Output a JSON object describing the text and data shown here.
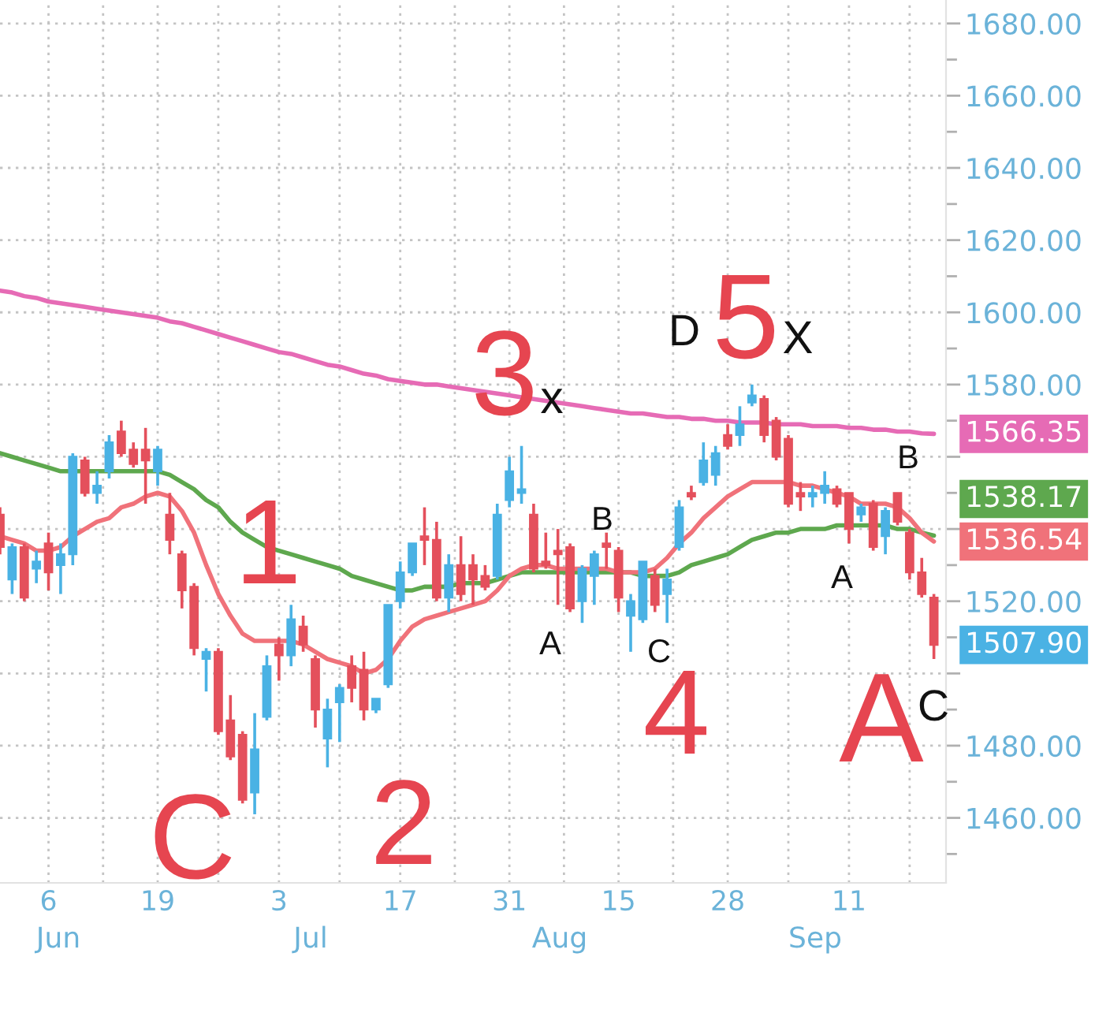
{
  "chart_data": {
    "type": "candlestick",
    "categories": [
      null,
      null,
      null,
      null,
      "6",
      null,
      null,
      null,
      null,
      null,
      null,
      null,
      null,
      "19",
      null,
      null,
      null,
      null,
      null,
      null,
      null,
      null,
      null,
      "3",
      null,
      null,
      null,
      null,
      null,
      null,
      null,
      null,
      null,
      "17",
      null,
      null,
      null,
      null,
      null,
      null,
      null,
      null,
      "31",
      null,
      null,
      null,
      null,
      null,
      null,
      null,
      null,
      "15",
      null,
      null,
      null,
      null,
      null,
      null,
      null,
      null,
      "28",
      null,
      null,
      null,
      null,
      null,
      null,
      null,
      null,
      null,
      "11",
      null,
      null,
      null,
      null,
      null,
      null,
      null
    ],
    "ohlc": [
      [
        1544,
        1546,
        1533,
        1535
      ],
      [
        1526,
        1536,
        1522,
        1535
      ],
      [
        1535,
        1536,
        1520,
        1521
      ],
      [
        1529,
        1534,
        1525,
        1531
      ],
      [
        1536,
        1539,
        1523,
        1528
      ],
      [
        1530,
        1536,
        1522,
        1533
      ],
      [
        1533,
        1561,
        1530,
        1560
      ],
      [
        1559,
        1560,
        1549,
        1550
      ],
      [
        1550,
        1556,
        1547,
        1552
      ],
      [
        1556,
        1566,
        1554,
        1564
      ],
      [
        1567,
        1570,
        1560,
        1561
      ],
      [
        1562,
        1564,
        1557,
        1558
      ],
      [
        1562,
        1568,
        1547,
        1559
      ],
      [
        1556,
        1563,
        1552,
        1562
      ],
      [
        1544,
        1550,
        1533,
        1537
      ],
      [
        1533,
        1534,
        1518,
        1523
      ],
      [
        1524,
        1525,
        1505,
        1507
      ],
      [
        1504,
        1507,
        1495,
        1506
      ],
      [
        1506,
        1507,
        1483,
        1484
      ],
      [
        1487,
        1494,
        1476,
        1477
      ],
      [
        1483,
        1484,
        1464,
        1465
      ],
      [
        1467,
        1489,
        1461,
        1479
      ],
      [
        1488,
        1505,
        1487,
        1502
      ],
      [
        1508,
        1510,
        1498,
        1505
      ],
      [
        1505,
        1519,
        1502,
        1515
      ],
      [
        1513,
        1516,
        1506,
        1508
      ],
      [
        1504,
        1505,
        1485,
        1490
      ],
      [
        1482,
        1493,
        1474,
        1490
      ],
      [
        1492,
        1497,
        1481,
        1496
      ],
      [
        1502,
        1505,
        1492,
        1496
      ],
      [
        1501,
        1506,
        1487,
        1490
      ],
      [
        1490,
        1493,
        1489,
        1493
      ],
      [
        1497,
        1519,
        1496,
        1519
      ],
      [
        1520,
        1531,
        1518,
        1528
      ],
      [
        1528,
        1536,
        1527,
        1536
      ],
      [
        1538,
        1546,
        1530,
        1537
      ],
      [
        1537,
        1542,
        1520,
        1521
      ],
      [
        1521,
        1533,
        1517,
        1530
      ],
      [
        1530,
        1538,
        1520,
        1522
      ],
      [
        1530,
        1533,
        1519,
        1526
      ],
      [
        1527,
        1530,
        1523,
        1524
      ],
      [
        1527,
        1547,
        1526,
        1544
      ],
      [
        1548,
        1560,
        1546,
        1556
      ],
      [
        1550,
        1563,
        1547,
        1551
      ],
      [
        1544,
        1547,
        1528,
        1529
      ],
      [
        1531,
        1539,
        1529,
        1530
      ],
      [
        1534,
        1540,
        1519,
        1533
      ],
      [
        1535,
        1536,
        1517,
        1518
      ],
      [
        1520,
        1530,
        1514,
        1529
      ],
      [
        1527,
        1534,
        1519,
        1533
      ],
      [
        1536,
        1539,
        1529,
        1535
      ],
      [
        1534,
        1535,
        1517,
        1521
      ],
      [
        1516,
        1522,
        1506,
        1520
      ],
      [
        1515,
        1531,
        1514,
        1531
      ],
      [
        1527,
        1529,
        1517,
        1519
      ],
      [
        1522,
        1529,
        1514,
        1526
      ],
      [
        1535,
        1548,
        1534,
        1546
      ],
      [
        1550,
        1552,
        1548,
        1549
      ],
      [
        1553,
        1564,
        1552,
        1559
      ],
      [
        1555,
        1563,
        1552,
        1561
      ],
      [
        1566,
        1569,
        1562,
        1563
      ],
      [
        1566,
        1574,
        1563,
        1569
      ],
      [
        1575,
        1580,
        1574,
        1577
      ],
      [
        1576,
        1577,
        1564,
        1566
      ],
      [
        1570,
        1571,
        1559,
        1560
      ],
      [
        1565,
        1566,
        1546,
        1547
      ],
      [
        1550,
        1553,
        1545,
        1549
      ],
      [
        1549,
        1552,
        1546,
        1550
      ],
      [
        1550,
        1556,
        1547,
        1552
      ],
      [
        1551,
        1552,
        1546,
        1547
      ],
      [
        1550,
        1550,
        1536,
        1540
      ],
      [
        1544,
        1547,
        1542,
        1546
      ],
      [
        1547,
        1548,
        1534,
        1535
      ],
      [
        1538,
        1546,
        1533,
        1545
      ],
      [
        1550,
        1550,
        1541,
        1542
      ],
      [
        1539,
        1540,
        1526,
        1528
      ],
      [
        1528,
        1532,
        1521,
        1522
      ],
      [
        1521,
        1522,
        1504,
        1507.9
      ]
    ],
    "colors": [
      "#e4505c",
      "#4ab2e4",
      "#e4505c",
      "#4ab2e4",
      "#e4505c",
      "#4ab2e4",
      "#4ab2e4",
      "#e4505c",
      "#4ab2e4",
      "#4ab2e4",
      "#e4505c",
      "#e4505c",
      "#e4505c",
      "#4ab2e4",
      "#e4505c",
      "#e4505c",
      "#e4505c",
      "#4ab2e4",
      "#e4505c",
      "#e4505c",
      "#e4505c",
      "#4ab2e4",
      "#4ab2e4",
      "#e4505c",
      "#4ab2e4",
      "#e4505c",
      "#e4505c",
      "#4ab2e4",
      "#4ab2e4",
      "#e4505c",
      "#e4505c",
      "#4ab2e4",
      "#4ab2e4",
      "#4ab2e4",
      "#4ab2e4",
      "#e4505c",
      "#e4505c",
      "#4ab2e4",
      "#e4505c",
      "#e4505c",
      "#e4505c",
      "#4ab2e4",
      "#4ab2e4",
      "#4ab2e4",
      "#e4505c",
      "#e4505c",
      "#e4505c",
      "#e4505c",
      "#4ab2e4",
      "#4ab2e4",
      "#e4505c",
      "#e4505c",
      "#4ab2e4",
      "#4ab2e4",
      "#e4505c",
      "#4ab2e4",
      "#4ab2e4",
      "#e4505c",
      "#4ab2e4",
      "#4ab2e4",
      "#e4505c",
      "#4ab2e4",
      "#4ab2e4",
      "#e4505c",
      "#e4505c",
      "#e4505c",
      "#e4505c",
      "#4ab2e4",
      "#4ab2e4",
      "#e4505c",
      "#e4505c",
      "#4ab2e4",
      "#e4505c",
      "#4ab2e4",
      "#e4505c",
      "#e4505c",
      "#e4505c",
      "#e4505c"
    ],
    "value_labels": [
      null,
      null,
      null,
      null,
      null,
      null,
      null,
      null,
      null,
      null,
      null,
      null,
      null,
      null,
      null,
      null,
      null,
      null,
      null,
      null,
      null,
      null,
      null,
      null,
      null,
      null,
      null,
      null,
      null,
      null,
      null,
      null,
      null,
      null,
      null,
      null,
      null,
      null,
      null,
      null,
      null,
      null,
      null,
      null,
      null,
      null,
      null,
      null,
      null,
      null,
      null,
      null,
      null,
      null,
      null,
      null,
      null,
      null,
      null,
      null,
      null,
      null,
      null,
      null,
      null,
      null,
      null,
      null,
      null,
      null,
      null,
      null,
      null,
      null,
      null,
      null,
      null,
      "1507.90"
    ],
    "series": [
      {
        "type": "line",
        "color": "#e66bb5",
        "values": [
          1606,
          1605.5,
          1604.5,
          1604,
          1603,
          1602.5,
          1602,
          1601.5,
          1601,
          1600.5,
          1600,
          1599.5,
          1599,
          1598.5,
          1597.5,
          1597,
          1596,
          1595,
          1594,
          1593,
          1592,
          1591,
          1590,
          1589,
          1588.5,
          1587.5,
          1586.5,
          1585.5,
          1585,
          1584,
          1583,
          1582.5,
          1581.5,
          1581,
          1580.5,
          1580,
          1580,
          1579.5,
          1579,
          1578.5,
          1578,
          1577.5,
          1577,
          1576.5,
          1576,
          1575.5,
          1575,
          1574.5,
          1574,
          1573.5,
          1573,
          1572.5,
          1572,
          1572,
          1571.5,
          1571,
          1571,
          1570.5,
          1570.5,
          1570,
          1570,
          1569.5,
          1569.5,
          1569.5,
          1569,
          1569,
          1569,
          1568.5,
          1568.5,
          1568.5,
          1568,
          1568,
          1567.5,
          1567.5,
          1567,
          1567,
          1566.5,
          1566.35
        ],
        "value_labels": [
          null,
          null,
          null,
          null,
          null,
          null,
          null,
          null,
          null,
          null,
          null,
          null,
          null,
          null,
          null,
          null,
          null,
          null,
          null,
          null,
          null,
          null,
          null,
          null,
          null,
          null,
          null,
          null,
          null,
          null,
          null,
          null,
          null,
          null,
          null,
          null,
          null,
          null,
          null,
          null,
          null,
          null,
          null,
          null,
          null,
          null,
          null,
          null,
          null,
          null,
          null,
          null,
          null,
          null,
          null,
          null,
          null,
          null,
          null,
          null,
          null,
          null,
          null,
          null,
          null,
          null,
          null,
          null,
          null,
          null,
          null,
          null,
          null,
          null,
          null,
          null,
          null,
          "1566.35"
        ]
      },
      {
        "type": "line",
        "color": "#5ea84e",
        "values": [
          1561,
          1560,
          1559,
          1558,
          1557,
          1556,
          1556,
          1556,
          1556,
          1556,
          1556,
          1556,
          1556,
          1556,
          1555,
          1553,
          1551,
          1548,
          1546,
          1542,
          1539,
          1537,
          1535,
          1534,
          1533,
          1532,
          1531,
          1530,
          1529,
          1527,
          1526,
          1525,
          1524,
          1523,
          1523,
          1524,
          1524,
          1524,
          1525,
          1525,
          1525,
          1526,
          1527,
          1528,
          1528,
          1528,
          1528,
          1528,
          1528,
          1528,
          1528,
          1528,
          1528,
          1527,
          1527,
          1527,
          1528,
          1530,
          1531,
          1532,
          1533,
          1535,
          1537,
          1538,
          1539,
          1539,
          1540,
          1540,
          1540,
          1541,
          1541,
          1541,
          1541,
          1541,
          1540,
          1540,
          1539,
          1538.17
        ],
        "value_labels": [
          null,
          null,
          null,
          null,
          null,
          null,
          null,
          null,
          null,
          null,
          null,
          null,
          null,
          null,
          null,
          null,
          null,
          null,
          null,
          null,
          null,
          null,
          null,
          null,
          null,
          null,
          null,
          null,
          null,
          null,
          null,
          null,
          null,
          null,
          null,
          null,
          null,
          null,
          null,
          null,
          null,
          null,
          null,
          null,
          null,
          null,
          null,
          null,
          null,
          null,
          null,
          null,
          null,
          null,
          null,
          null,
          null,
          null,
          null,
          null,
          null,
          null,
          null,
          null,
          null,
          null,
          null,
          null,
          null,
          null,
          null,
          null,
          null,
          null,
          null,
          null,
          null,
          "1538.17"
        ]
      },
      {
        "type": "line",
        "color": "#f0727a",
        "values": [
          1538,
          1537,
          1536,
          1534,
          1534,
          1535,
          1538,
          1540,
          1542,
          1543,
          1546,
          1547,
          1549,
          1550,
          1549,
          1545,
          1539,
          1530,
          1522,
          1516,
          1511,
          1509,
          1509,
          1509,
          1509,
          1508,
          1506,
          1504,
          1503,
          1502,
          1500,
          1501,
          1504,
          1509,
          1513,
          1515,
          1516,
          1517,
          1518,
          1519,
          1520,
          1523,
          1527,
          1529,
          1530,
          1530,
          1529,
          1529,
          1529,
          1529,
          1529,
          1528,
          1528,
          1528,
          1529,
          1532,
          1536,
          1539,
          1543,
          1546,
          1549,
          1551,
          1553,
          1553,
          1553,
          1553,
          1552,
          1552,
          1551,
          1550,
          1549,
          1547,
          1547,
          1547,
          1546,
          1543,
          1539,
          1536.54
        ],
        "value_labels": [
          null,
          null,
          null,
          null,
          null,
          null,
          null,
          null,
          null,
          null,
          null,
          null,
          null,
          null,
          null,
          null,
          null,
          null,
          null,
          null,
          null,
          null,
          null,
          null,
          null,
          null,
          null,
          null,
          null,
          null,
          null,
          null,
          null,
          null,
          null,
          null,
          null,
          null,
          null,
          null,
          null,
          null,
          null,
          null,
          null,
          null,
          null,
          null,
          null,
          null,
          null,
          null,
          null,
          null,
          null,
          null,
          null,
          null,
          null,
          null,
          null,
          null,
          null,
          null,
          null,
          null,
          null,
          null,
          null,
          null,
          null,
          null,
          null,
          null,
          null,
          null,
          null,
          "1536.54"
        ]
      }
    ],
    "ylim": [
      1442,
      1686.5
    ],
    "yticks": [
      {
        "value": 1460,
        "label": "1460.00"
      },
      {
        "value": 1480,
        "label": "1480.00"
      },
      {
        "value": 1500,
        "label": null
      },
      {
        "value": 1520,
        "label": "1520.00"
      },
      {
        "value": 1540,
        "label": null
      },
      {
        "value": 1560,
        "label": null
      },
      {
        "value": 1580,
        "label": "1580.00"
      },
      {
        "value": 1600,
        "label": "1600.00"
      },
      {
        "value": 1620,
        "label": "1620.00"
      },
      {
        "value": 1640,
        "label": "1640.00"
      },
      {
        "value": 1660,
        "label": "1660.00"
      },
      {
        "value": 1680,
        "label": "1680.00"
      }
    ],
    "grid": true,
    "annotations": [
      "C",
      "1",
      "2",
      "3",
      "x",
      "A",
      "B",
      "C",
      "4",
      "D",
      "5",
      "X",
      "A",
      "A",
      "B",
      "C",
      "Jun",
      "Jul",
      "Aug",
      "Sep"
    ]
  }
}
